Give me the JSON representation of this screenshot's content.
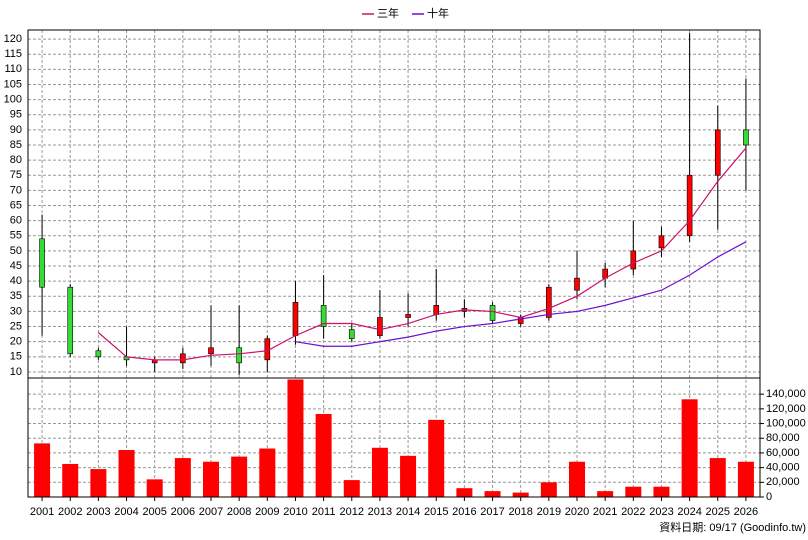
{
  "legend_position": "top",
  "footer": "資料日期: 09/17 (Goodinfo.tw)",
  "chart_data": [
    {
      "type": "candlestick",
      "open": [
        54,
        38,
        17,
        15,
        13,
        13,
        16,
        18,
        14,
        22,
        32,
        24,
        22,
        28,
        29,
        30,
        32,
        26,
        28,
        37,
        41,
        44,
        51,
        55,
        75,
        90
      ],
      "high": [
        62,
        39,
        18,
        25,
        15,
        18,
        32,
        32,
        22,
        40,
        42,
        26,
        37,
        36,
        44,
        34,
        33,
        29,
        39,
        50,
        46,
        60,
        58,
        122,
        98,
        107
      ],
      "low": [
        22,
        15,
        14,
        12,
        10,
        11,
        12,
        9,
        10,
        19,
        21,
        20,
        21,
        25,
        27,
        28,
        26,
        25,
        27,
        34,
        38,
        42,
        48,
        53,
        57,
        70
      ],
      "close": [
        38,
        16,
        15,
        14,
        14,
        16,
        18,
        13,
        21,
        33,
        25,
        21,
        28,
        29,
        32,
        31,
        27,
        28,
        38,
        41,
        44,
        50,
        55,
        75,
        90,
        85
      ],
      "up_color": "#ff0000",
      "down_color": "#33dd33",
      "series": [
        {
          "name": "三年",
          "color": "#d0106a",
          "values": [
            null,
            null,
            23,
            15,
            14,
            14,
            15.5,
            16,
            17,
            22,
            26,
            26,
            24,
            26,
            29,
            30.5,
            30,
            28,
            31,
            35,
            41,
            46,
            50,
            60,
            73,
            84
          ]
        },
        {
          "name": "十年",
          "color": "#6a10d0",
          "values": [
            null,
            null,
            null,
            null,
            null,
            null,
            null,
            null,
            null,
            20,
            18.5,
            18.5,
            20,
            21.5,
            23.5,
            25,
            26,
            27.5,
            29,
            30,
            32,
            34.5,
            37,
            42,
            48,
            53
          ]
        }
      ],
      "ylim": [
        8,
        123
      ],
      "yticks": [
        10,
        15,
        20,
        25,
        30,
        35,
        40,
        45,
        50,
        55,
        60,
        65,
        70,
        75,
        80,
        85,
        90,
        95,
        100,
        105,
        110,
        115,
        120
      ],
      "grid": true
    },
    {
      "type": "bar",
      "categories": [
        "2001",
        "2002",
        "2003",
        "2004",
        "2005",
        "2006",
        "2007",
        "2008",
        "2009",
        "2010",
        "2011",
        "2012",
        "2013",
        "2014",
        "2015",
        "2016",
        "2017",
        "2018",
        "2019",
        "2020",
        "2021",
        "2022",
        "2023",
        "2024",
        "2025",
        "2026"
      ],
      "values": [
        73000,
        45000,
        38000,
        64000,
        24000,
        53000,
        48000,
        55000,
        66000,
        160000,
        113000,
        23000,
        67000,
        56000,
        105000,
        12000,
        8000,
        6000,
        20000,
        48000,
        8000,
        14000,
        14000,
        133000,
        53000,
        48000
      ],
      "color": "#ff0000",
      "ylim": [
        0,
        162000
      ],
      "yticks": [
        0,
        {
          "value": 20000,
          "label": "20,000"
        },
        {
          "value": 40000,
          "label": "40,000"
        },
        {
          "value": 60000,
          "label": "60,000"
        },
        {
          "value": 80000,
          "label": "80,000"
        },
        {
          "value": 100000,
          "label": "100,000"
        },
        {
          "value": 120000,
          "label": "120,000"
        },
        {
          "value": 140000,
          "label": "140,000"
        }
      ],
      "grid": true
    }
  ]
}
